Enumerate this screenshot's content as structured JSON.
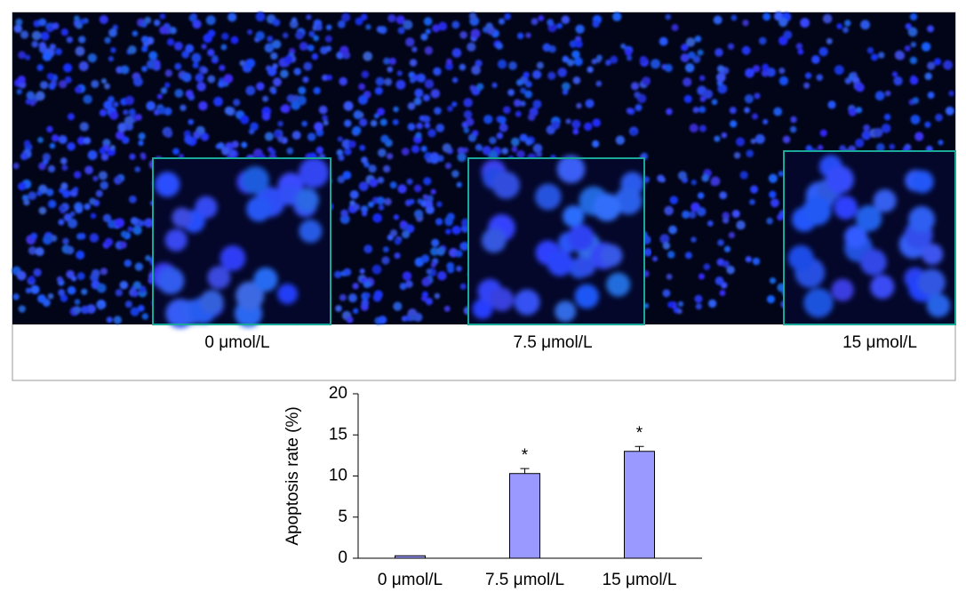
{
  "image_labels": [
    "0 μmol/L",
    "7.5 μmol/L",
    "15 μmol/L"
  ],
  "chart_data": {
    "type": "bar",
    "ylabel": "Apoptosis rate (%)",
    "categories": [
      "0 μmol/L",
      "7.5 μmol/L",
      "15 μmol/L"
    ],
    "values": [
      0.3,
      10.3,
      13.0
    ],
    "errors": [
      0,
      0.6,
      0.6
    ],
    "value_labels": [
      null,
      "*",
      "*"
    ],
    "color": "#9999ff",
    "ylim": [
      0,
      20
    ],
    "yticks": [
      0,
      5,
      10,
      15,
      20
    ]
  }
}
